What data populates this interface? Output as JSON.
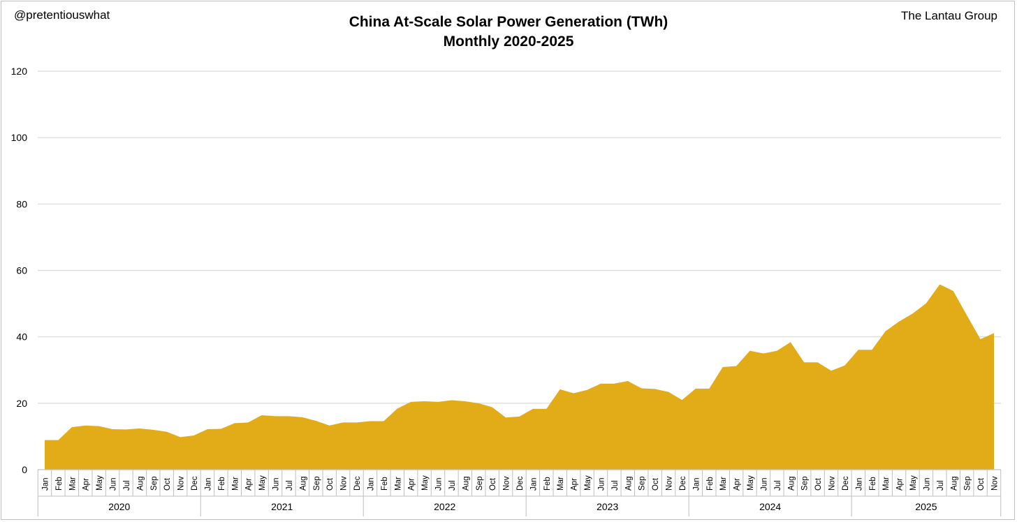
{
  "header": {
    "handle": "@pretentiouswhat",
    "source": "The Lantau Group",
    "title_line1": "China At-Scale Solar Power Generation (TWh)",
    "title_line2": "Monthly 2020-2025"
  },
  "colors": {
    "area": "#e2ac18",
    "grid": "#d9d9d9",
    "axis": "#bfbfbf"
  },
  "chart_data": {
    "type": "area",
    "title": "China At-Scale Solar Power Generation (TWh) Monthly 2020-2025",
    "xlabel": "",
    "ylabel": "",
    "ylim": [
      0,
      120
    ],
    "yticks": [
      0,
      20,
      40,
      60,
      80,
      100,
      120
    ],
    "grid": true,
    "months": [
      "Jan",
      "Feb",
      "Mar",
      "Apr",
      "May",
      "Jun",
      "Jul",
      "Aug",
      "Sep",
      "Oct",
      "Nov",
      "Dec"
    ],
    "years": [
      "2020",
      "2021",
      "2022",
      "2023",
      "2024",
      "2025"
    ],
    "last_year_months": 11,
    "series": [
      {
        "name": "At-Scale Solar Generation (TWh)",
        "values": [
          8.9,
          8.9,
          12.8,
          13.3,
          13.1,
          12.2,
          12.1,
          12.4,
          12.0,
          11.4,
          9.8,
          10.3,
          12.2,
          12.3,
          14.0,
          14.2,
          16.4,
          16.1,
          16.1,
          15.8,
          14.7,
          13.3,
          14.2,
          14.2,
          14.6,
          14.6,
          18.4,
          20.4,
          20.6,
          20.4,
          20.9,
          20.6,
          20.0,
          18.8,
          15.7,
          16.0,
          18.3,
          18.3,
          24.2,
          23.0,
          24.0,
          25.9,
          25.9,
          26.7,
          24.5,
          24.3,
          23.4,
          21.0,
          24.4,
          24.4,
          30.9,
          31.2,
          35.8,
          35.0,
          35.8,
          38.4,
          32.3,
          32.3,
          29.8,
          31.4,
          36.1,
          36.1,
          41.7,
          44.6,
          47.0,
          50.1,
          55.8,
          53.8,
          46.5,
          39.3,
          41.1
        ]
      }
    ]
  }
}
